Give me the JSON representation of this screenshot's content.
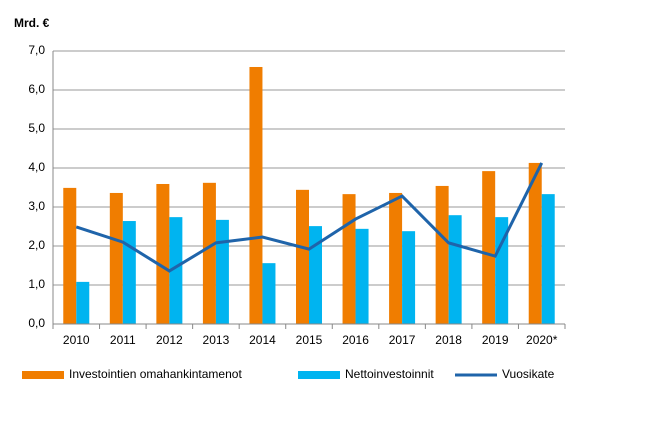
{
  "chart_data": {
    "type": "bar-line",
    "y_unit_label": "Mrd. €",
    "categories": [
      "2010",
      "2011",
      "2012",
      "2013",
      "2014",
      "2015",
      "2016",
      "2017",
      "2018",
      "2019",
      "2020*"
    ],
    "series": [
      {
        "name": "Investointien omahankintamenot",
        "type": "bar",
        "color": "#f07d00",
        "values": [
          3.49,
          3.36,
          3.59,
          3.62,
          6.59,
          3.44,
          3.33,
          3.36,
          3.54,
          3.92,
          4.13
        ]
      },
      {
        "name": "Nettoinvestoinnit",
        "type": "bar",
        "color": "#00b4f0",
        "values": [
          1.08,
          2.64,
          2.74,
          2.67,
          1.56,
          2.51,
          2.44,
          2.38,
          2.79,
          2.74,
          3.33
        ]
      },
      {
        "name": "Vuosikate",
        "type": "line",
        "color": "#1f64aa",
        "values": [
          2.49,
          2.1,
          1.36,
          2.08,
          2.23,
          1.92,
          2.69,
          3.28,
          2.08,
          1.74,
          4.13
        ]
      }
    ],
    "ylim": [
      0,
      7
    ],
    "yticks": [
      {
        "value": 0,
        "label": "0,0"
      },
      {
        "value": 1,
        "label": "1,0"
      },
      {
        "value": 2,
        "label": "2,0"
      },
      {
        "value": 3,
        "label": "3,0"
      },
      {
        "value": 4,
        "label": "4,0"
      },
      {
        "value": 5,
        "label": "5,0"
      },
      {
        "value": 6,
        "label": "6,0"
      },
      {
        "value": 7,
        "label": "7,0"
      }
    ],
    "grid": true,
    "legend": "bottom"
  }
}
